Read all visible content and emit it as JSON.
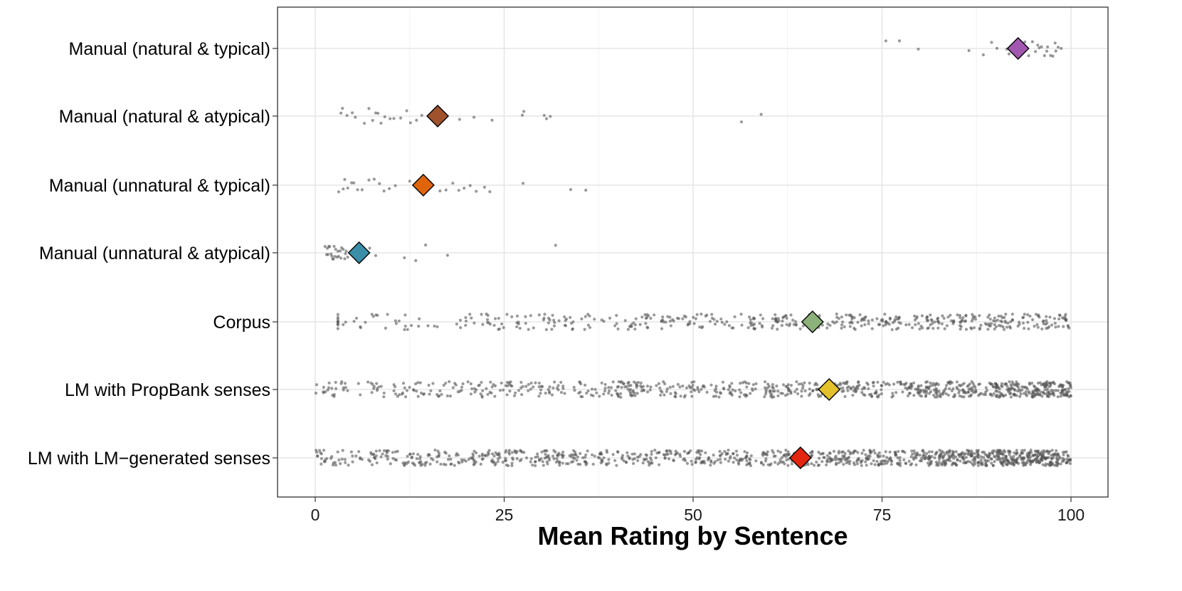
{
  "chart_data": {
    "type": "scatter",
    "title": "",
    "xlabel": "Mean Rating by Sentence",
    "ylabel": "",
    "xlim": [
      -2.5,
      104.5
    ],
    "xticks": [
      0,
      25,
      50,
      75,
      100
    ],
    "x_tick_labels": [
      "0",
      "25",
      "50",
      "75",
      "100"
    ],
    "grid": true,
    "legend": "none",
    "categories": [
      "Manual (natural & typical)",
      "Manual (natural & atypical)",
      "Manual (unnatural & typical)",
      "Manual (unnatural & atypical)",
      "Corpus",
      "LM with PropBank senses",
      "LM with LM-generated senses"
    ],
    "category_labels": [
      "Manual (natural & typical)",
      "Manual (natural & atypical)",
      "Manual (unnatural & typical)",
      "Manual (unnatural & atypical)",
      "Corpus",
      "LM with PropBank senses",
      "LM with LM−generated senses"
    ],
    "means": [
      93,
      16.2,
      14.3,
      5.8,
      65.8,
      68,
      64.2
    ],
    "mean_colors": [
      "#a257b0",
      "#a0522d",
      "#e0650a",
      "#3a8ea8",
      "#8db17a",
      "#e3c12a",
      "#e3260f"
    ],
    "point_color": "#555555",
    "series": [
      {
        "name": "Manual (natural & typical)",
        "values": [
          75.5,
          77.3,
          79.8,
          86.5,
          88.4,
          89.5,
          90.2,
          91.5,
          92.3,
          92.8,
          93.1,
          93.6,
          94.4,
          94.9,
          95.3,
          95.8,
          96.1,
          96.5,
          96.9,
          97.3,
          97.6,
          98.0,
          98.3,
          98.7,
          95.6,
          94.1,
          96.8,
          97.9,
          93.9,
          91.8
        ]
      },
      {
        "name": "Manual (natural & atypical)",
        "values": [
          3.4,
          3.6,
          4.2,
          4.9,
          5.3,
          6.5,
          7.1,
          7.6,
          8.0,
          8.3,
          8.7,
          9.2,
          9.9,
          10.4,
          11.3,
          12.1,
          12.6,
          13.4,
          14.1,
          16.3,
          17.0,
          19.1,
          21.0,
          23.4,
          27.4,
          27.6,
          30.3,
          30.6,
          31.1,
          56.4,
          59.0
        ]
      },
      {
        "name": "Manual (unnatural & typical)",
        "values": [
          3.1,
          3.7,
          3.9,
          4.3,
          4.8,
          5.1,
          5.6,
          6.2,
          7.1,
          7.8,
          8.5,
          9.1,
          9.8,
          10.6,
          12.5,
          13.5,
          16.5,
          17.3,
          18.2,
          19.0,
          19.7,
          20.5,
          21.3,
          22.4,
          23.1,
          27.5,
          33.8,
          35.8
        ]
      },
      {
        "name": "Manual (unnatural & atypical)",
        "values": [
          1.3,
          1.5,
          1.7,
          1.9,
          2.1,
          2.3,
          2.5,
          2.7,
          2.9,
          3.1,
          3.3,
          3.5,
          3.7,
          3.9,
          4.1,
          4.3,
          2.2,
          1.8,
          2.6,
          3.4,
          4.0,
          1.6,
          2.4,
          3.0,
          7.2,
          8.0,
          11.8,
          13.3,
          14.6,
          17.5,
          31.8
        ]
      },
      {
        "name": "Corpus",
        "generated": true,
        "n": 480,
        "range": [
          3,
          100
        ],
        "weights": [
          [
            0,
            20,
            1.5
          ],
          [
            20,
            40,
            2.5
          ],
          [
            40,
            60,
            3
          ],
          [
            60,
            80,
            4
          ],
          [
            80,
            100,
            5
          ]
        ]
      },
      {
        "name": "LM with PropBank senses",
        "generated": true,
        "n": 820,
        "range": [
          0,
          100
        ],
        "weights": [
          [
            0,
            20,
            2
          ],
          [
            20,
            40,
            2.5
          ],
          [
            40,
            60,
            3
          ],
          [
            60,
            80,
            4
          ],
          [
            80,
            90,
            6
          ],
          [
            90,
            100,
            10
          ]
        ]
      },
      {
        "name": "LM with LM-generated senses",
        "generated": true,
        "n": 1100,
        "range": [
          0,
          100
        ],
        "weights": [
          [
            0,
            20,
            3
          ],
          [
            20,
            40,
            3.5
          ],
          [
            40,
            60,
            4
          ],
          [
            60,
            80,
            5
          ],
          [
            80,
            90,
            8
          ],
          [
            90,
            100,
            11
          ]
        ]
      }
    ]
  }
}
